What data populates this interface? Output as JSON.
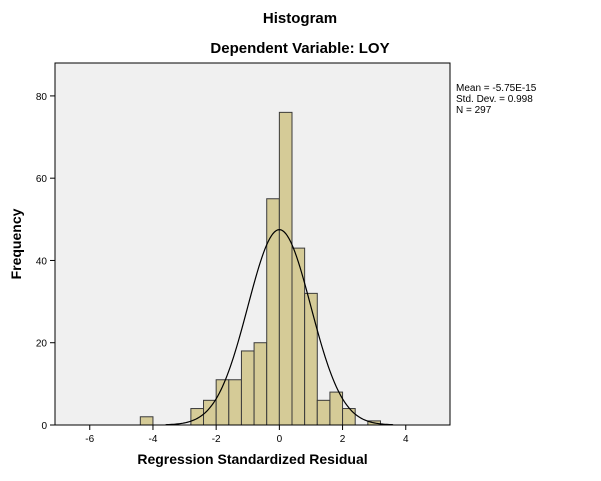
{
  "chart_data": {
    "type": "histogram",
    "title": "Histogram",
    "subtitle": "Dependent Variable: LOY",
    "xlabel": "Regression Standardized Residual",
    "ylabel": "Frequency",
    "xlim": [
      -7.1,
      5.4
    ],
    "ylim": [
      0,
      88
    ],
    "x_ticks": [
      -6,
      -4,
      -2,
      0,
      2,
      4
    ],
    "x_tick_labels": [
      "-6",
      "-4",
      "-2",
      "0",
      "2",
      "4"
    ],
    "y_ticks": [
      0,
      20,
      40,
      60,
      80
    ],
    "y_tick_labels": [
      "0",
      "20",
      "40",
      "60",
      "80"
    ],
    "bin_width": 0.4,
    "bins": [
      {
        "start": -4.4,
        "count": 2
      },
      {
        "start": -2.8,
        "count": 4
      },
      {
        "start": -2.4,
        "count": 6
      },
      {
        "start": -2.0,
        "count": 11
      },
      {
        "start": -1.6,
        "count": 11
      },
      {
        "start": -1.2,
        "count": 18
      },
      {
        "start": -0.8,
        "count": 20
      },
      {
        "start": -0.4,
        "count": 55
      },
      {
        "start": 0.0,
        "count": 76
      },
      {
        "start": 0.4,
        "count": 43
      },
      {
        "start": 0.8,
        "count": 32
      },
      {
        "start": 1.2,
        "count": 6
      },
      {
        "start": 1.6,
        "count": 8
      },
      {
        "start": 2.0,
        "count": 4
      },
      {
        "start": 2.8,
        "count": 1
      }
    ],
    "normal_curve": {
      "mean": -5.75e-15,
      "std": 0.998,
      "n": 297
    },
    "stats": {
      "mean_label": "Mean = -5.75E-15",
      "std_label": "Std. Dev. = 0.998",
      "n_label": "N = 297"
    },
    "colors": {
      "bar_fill": "#d5cb97",
      "bar_stroke": "#3a3a3a",
      "plot_bg": "#f0f0f0",
      "curve": "#000000"
    }
  }
}
